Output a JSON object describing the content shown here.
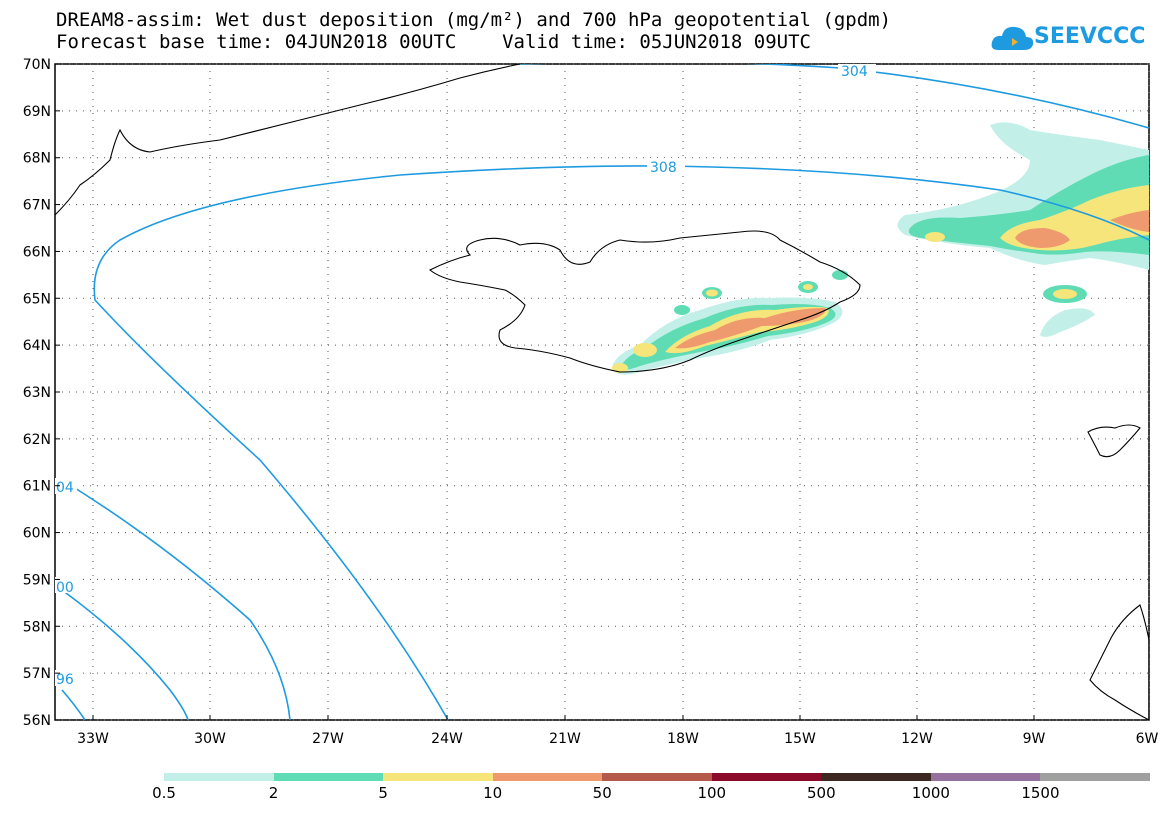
{
  "title": {
    "line1": "DREAM8-assim: Wet dust deposition (mg/m²) and 700 hPa geopotential (gpdm)",
    "line2": "Forecast base time: 04JUN2018 00UTC    Valid time: 05JUN2018 09UTC"
  },
  "logo": {
    "text": "SEEVCCC",
    "icon": "cloud-icon",
    "color": "#1e9be0"
  },
  "axes": {
    "lat_labels": [
      "70N",
      "69N",
      "68N",
      "67N",
      "66N",
      "65N",
      "64N",
      "63N",
      "62N",
      "61N",
      "60N",
      "59N",
      "58N",
      "57N",
      "56N"
    ],
    "lon_labels": [
      "33W",
      "30W",
      "27W",
      "24W",
      "21W",
      "18W",
      "15W",
      "12W",
      "9W",
      "6W"
    ]
  },
  "contours": {
    "color": "#1e9be0",
    "labels": [
      "304",
      "308",
      "04",
      "00",
      "96"
    ]
  },
  "legend": {
    "colors": [
      "#c2f0e9",
      "#5fdcb4",
      "#f6e57a",
      "#ee9a6e",
      "#b55a4a",
      "#8c0a2a",
      "#3c281e",
      "#96709e",
      "#a0a0a0"
    ],
    "labels": [
      "0.5",
      "2",
      "5",
      "10",
      "50",
      "100",
      "500",
      "1000",
      "1500"
    ]
  }
}
